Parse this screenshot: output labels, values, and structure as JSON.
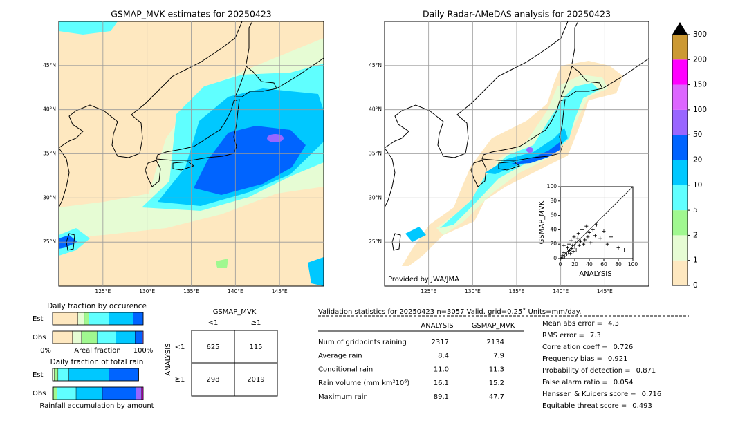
{
  "maps": [
    {
      "title": "GSMAP_MVK estimates for 20250423",
      "lon_range": [
        120,
        150
      ],
      "lat_range": [
        20,
        50
      ],
      "lon_ticks": [
        {
          "value": 125,
          "label": "125°E"
        },
        {
          "value": 130,
          "label": "130°E"
        },
        {
          "value": 135,
          "label": "135°E"
        },
        {
          "value": 140,
          "label": "140°E"
        },
        {
          "value": 145,
          "label": "145°E"
        }
      ],
      "lat_ticks": [
        {
          "value": 45,
          "label": "45°N"
        },
        {
          "value": 40,
          "label": "40°N"
        },
        {
          "value": 35,
          "label": "35°N"
        },
        {
          "value": 30,
          "label": "30°N"
        },
        {
          "value": 25,
          "label": "25°N"
        }
      ]
    },
    {
      "title": "Daily Radar-AMeDAS analysis for 20250423",
      "lon_range": [
        120,
        150
      ],
      "lat_range": [
        20,
        50
      ],
      "lon_ticks": [
        {
          "value": 125,
          "label": "125°E"
        },
        {
          "value": 130,
          "label": "130°E"
        },
        {
          "value": 135,
          "label": "135°E"
        },
        {
          "value": 140,
          "label": "140°E"
        },
        {
          "value": 145,
          "label": "145°E"
        }
      ],
      "lat_ticks": [
        {
          "value": 45,
          "label": "45°N"
        },
        {
          "value": 40,
          "label": "40°N"
        },
        {
          "value": 35,
          "label": "35°N"
        },
        {
          "value": 30,
          "label": "30°N"
        },
        {
          "value": 25,
          "label": "25°N"
        }
      ],
      "credit": "Provided by JWA/JMA"
    }
  ],
  "colorbar": {
    "ticks": [
      0,
      1,
      2,
      5,
      10,
      20,
      50,
      100,
      150,
      200,
      300
    ],
    "colors": [
      "#fee8c0",
      "#e6fcd4",
      "#a0f890",
      "#60ffff",
      "#00c8ff",
      "#0064ff",
      "#9966ff",
      "#dd66ff",
      "#ff00ff",
      "#cc9933"
    ],
    "extend_color": "#000000"
  },
  "scatter": {
    "type": "scatter",
    "xlabel": "ANALYSIS",
    "ylabel": "GSMAP_MVK",
    "xlim": [
      0,
      100
    ],
    "ylim": [
      0,
      100
    ],
    "xticks": [
      0,
      20,
      40,
      60,
      80,
      100
    ],
    "yticks": [
      0,
      20,
      40,
      60,
      80,
      100
    ],
    "color": "#000000",
    "points_x": [
      2,
      3,
      5,
      6,
      8,
      9,
      10,
      11,
      12,
      13,
      14,
      15,
      16,
      17,
      18,
      19,
      20,
      21,
      22,
      24,
      25,
      26,
      28,
      30,
      32,
      34,
      36,
      38,
      40,
      42,
      45,
      48,
      50,
      55,
      60,
      65,
      70,
      80,
      88,
      5
    ],
    "points_y": [
      1,
      4,
      8,
      3,
      12,
      6,
      15,
      9,
      20,
      11,
      7,
      25,
      14,
      18,
      10,
      30,
      16,
      22,
      12,
      28,
      35,
      18,
      24,
      40,
      20,
      26,
      45,
      30,
      36,
      22,
      40,
      32,
      47,
      28,
      38,
      20,
      30,
      15,
      12,
      18
    ]
  },
  "occurrence": {
    "title": "Daily fraction by occurence",
    "xlabel": "Areal fraction",
    "xmin_label": "0%",
    "xmax_label": "100%",
    "rows": [
      {
        "name": "Est",
        "fractions": [
          0.28,
          0.07,
          0.05,
          0.22,
          0.27,
          0.11,
          0,
          0,
          0,
          0
        ]
      },
      {
        "name": "Obs",
        "fractions": [
          0.22,
          0.1,
          0.17,
          0.21,
          0.21,
          0.08,
          0.01,
          0,
          0,
          0
        ]
      }
    ]
  },
  "amount": {
    "title": "Daily fraction of total rain",
    "xlabel": "Rainfall accumulation by amount",
    "rows": [
      {
        "name": "Est",
        "fractions": [
          0,
          0.02,
          0.04,
          0.12,
          0.44,
          0.33,
          0,
          0,
          0,
          0
        ]
      },
      {
        "name": "Obs",
        "fractions": [
          0,
          0.01,
          0.04,
          0.21,
          0.29,
          0.37,
          0.06,
          0.01,
          0.01,
          0
        ]
      }
    ]
  },
  "contingency": {
    "title": "GSMAP_MVK",
    "col_labels": [
      "<1",
      "≥1"
    ],
    "row_title": "ANALYSIS",
    "row_labels": [
      "<1",
      "≥1"
    ],
    "cells": [
      [
        625,
        115
      ],
      [
        298,
        2019
      ]
    ]
  },
  "validation": {
    "header": "Validation statistics for 20250423  n=3057 Valid. grid=0.25˚ Units=mm/day.",
    "columns": [
      "ANALYSIS",
      "GSMAP_MVK"
    ],
    "rows": [
      {
        "label": "Num of gridpoints raining",
        "values": [
          2317,
          2134
        ]
      },
      {
        "label": "Average rain",
        "values": [
          8.4,
          7.9
        ]
      },
      {
        "label": "Conditional rain",
        "values": [
          11.0,
          11.3
        ],
        "value_labels": [
          "11.0",
          "11.3"
        ]
      },
      {
        "label": "Rain volume (mm km²10⁶)",
        "values": [
          16.1,
          15.2
        ]
      },
      {
        "label": "Maximum rain",
        "values": [
          89.1,
          47.7
        ]
      }
    ],
    "scores": [
      {
        "label": "Mean abs error =",
        "value": 4.3
      },
      {
        "label": "RMS error =",
        "value": 7.3
      },
      {
        "label": "Correlation coeff =",
        "value": 0.726
      },
      {
        "label": "Frequency bias =",
        "value": 0.921
      },
      {
        "label": "Probability of detection =",
        "value": 0.871
      },
      {
        "label": "False alarm ratio =",
        "value": 0.054
      },
      {
        "label": "Hanssen & Kuipers score =",
        "value": 0.716
      },
      {
        "label": "Equitable threat score =",
        "value": 0.493
      }
    ]
  }
}
